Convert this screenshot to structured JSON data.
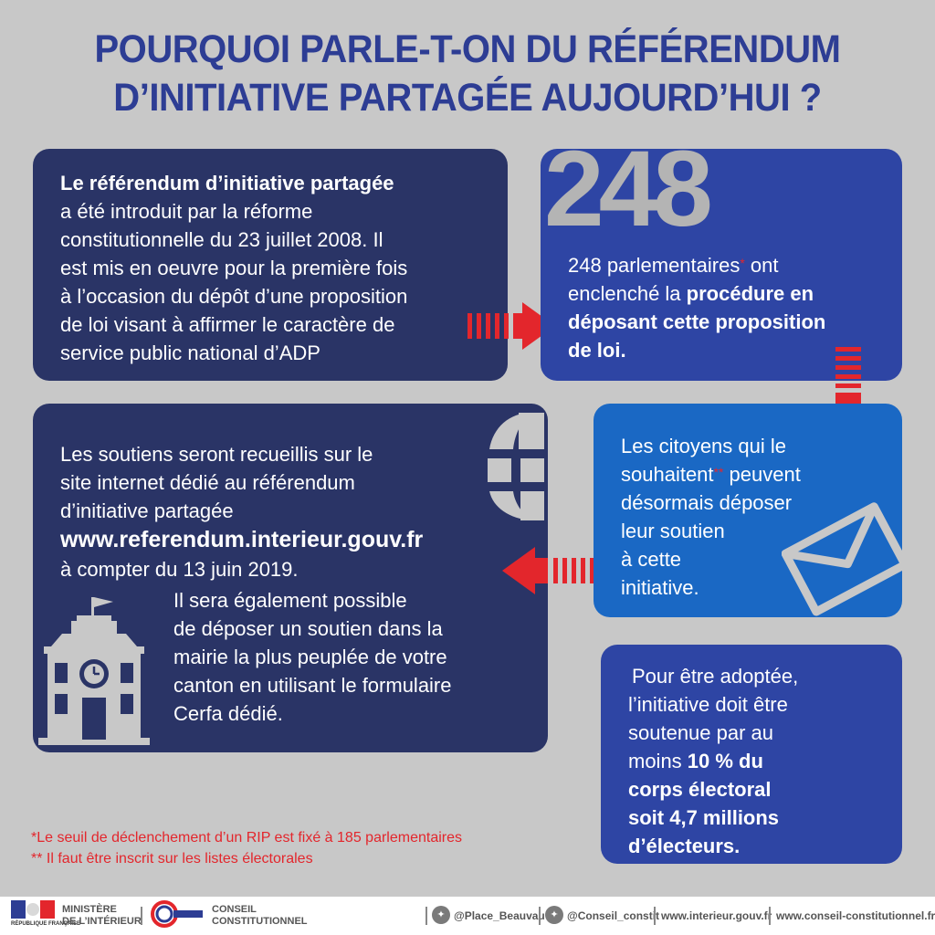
{
  "title": {
    "line1": "POURQUOI PARLE-T-ON DU RÉFÉRENDUM",
    "line2": "D’INITIATIVE PARTAGÉE AUJOURD’HUI ?"
  },
  "box1": {
    "heading": "Le référendum d’initiative partagée",
    "lines": [
      "a été introduit par la réforme",
      "constitutionnelle du 23 juillet 2008. Il",
      "est mis en oeuvre pour la première fois",
      "à l’occasion du dépôt d’une proposition",
      "de loi visant à affirmer le caractère de",
      "service public national d’ADP"
    ]
  },
  "box2": {
    "big_number": "248",
    "line1_a": "248 parlementaires",
    "line1_ast": "*",
    "line1_b": " ont",
    "line2_a": "enclenché la ",
    "line2_b": "procédure en",
    "line3": "déposant cette proposition",
    "line4": "de loi."
  },
  "box3": {
    "lines": [
      "Les soutiens seront recueillis sur le",
      "site internet dédié au référendum",
      "d’initiative partagée"
    ],
    "url": "www.referendum.interieur.gouv.fr",
    "date_line": "à compter du 13 juin 2019.",
    "lines2": [
      "Il sera également possible",
      "de déposer un soutien dans la",
      "mairie la plus peuplée de votre",
      "canton en utilisant le formulaire",
      "Cerfa dédié."
    ]
  },
  "box4": {
    "line1": "Les citoyens qui le",
    "line2_a": "souhaitent",
    "line2_ast": "**",
    "line2_b": " peuvent",
    "lines": [
      "désormais déposer",
      "leur soutien",
      "à cette",
      "initiative."
    ]
  },
  "box5": {
    "line1": "Pour être adoptée,",
    "line2": "l’initiative doit être",
    "line3": "soutenue par au",
    "line4_a": "moins ",
    "line4_b": "10 % du",
    "line5": "corps électoral",
    "line6": "soit 4,7 millions",
    "line7": "d’électeurs."
  },
  "notes": {
    "note1": "*Le seuil de déclenchement d’un RIP est fixé à 185 parlementaires",
    "note2": "** Il faut être inscrit sur les listes électorales"
  },
  "footer": {
    "ministry_line1": "MINISTÈRE",
    "ministry_line2": "DE L’INTÉRIEUR",
    "republic": "RÉPUBLIQUE FRANÇAISE",
    "conseil_line1": "CONSEIL",
    "conseil_line2": "CONSTITUTIONNEL",
    "twitter1": "@Place_Beauvau",
    "twitter2": "@Conseil_constit",
    "site1": "www.interieur.gouv.fr",
    "site2": "www.conseil-constitutionnel.fr"
  },
  "colors": {
    "title": "#2d3d94",
    "dark_box": "#2a3466",
    "royal_box": "#2e45a4",
    "bright_box": "#1a68c4",
    "accent_red": "#e3262c",
    "background": "#c8c8c8"
  }
}
